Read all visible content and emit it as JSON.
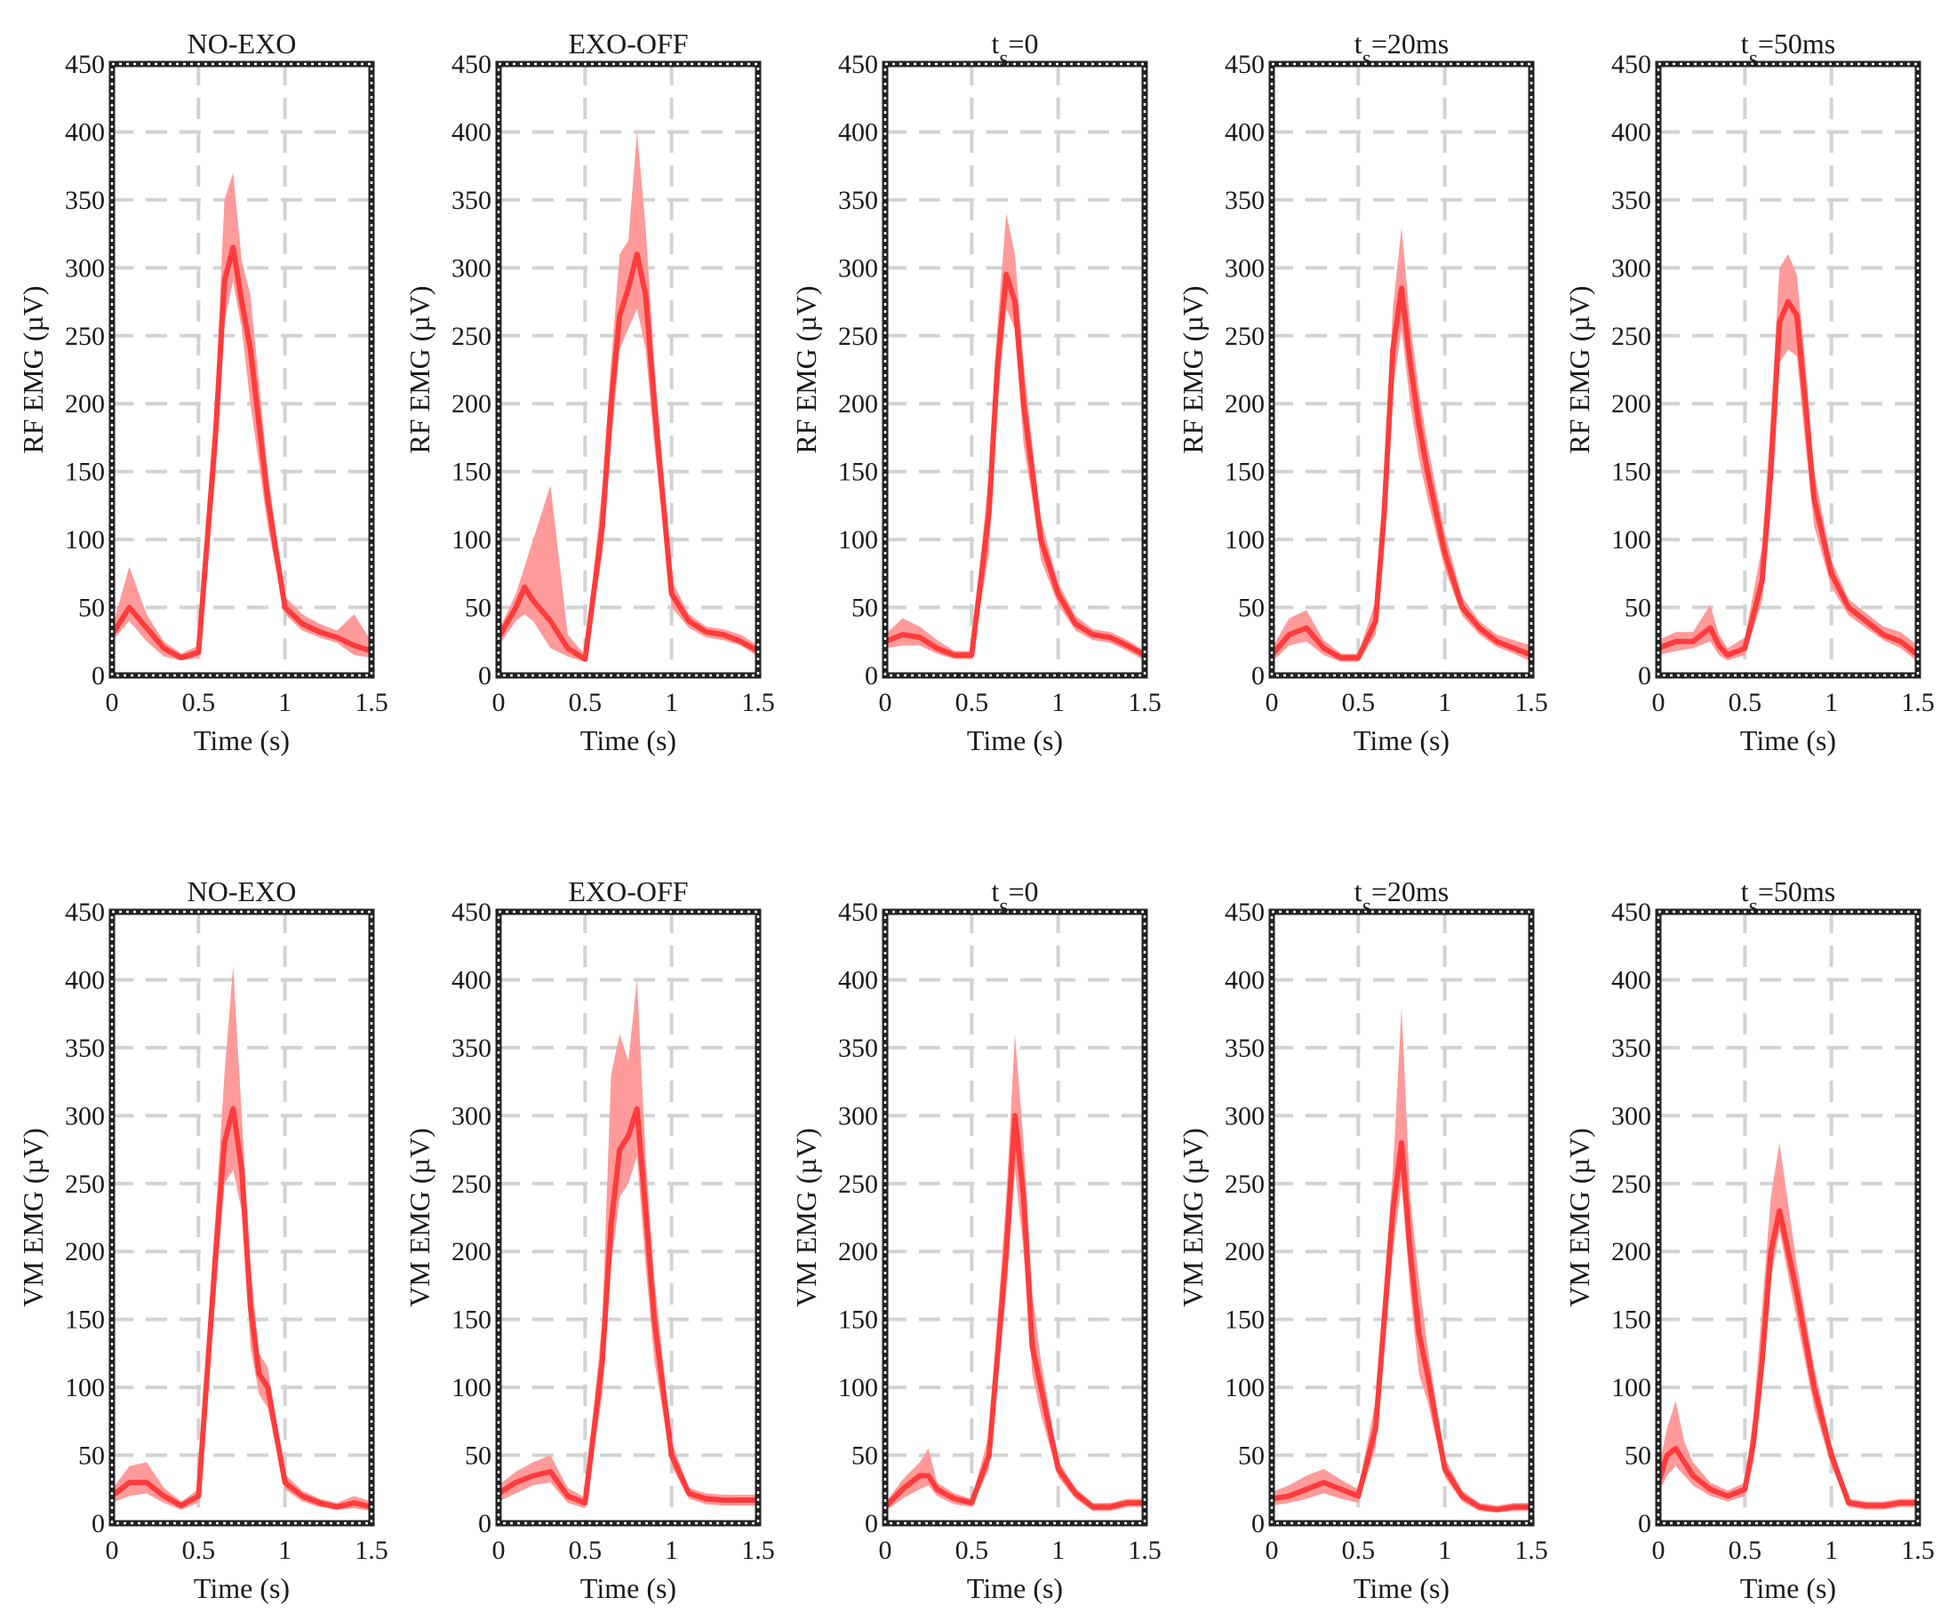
{
  "colors": {
    "line": "#ff3b3b",
    "band": "#ff9a9a",
    "frame": "#222222",
    "grid": "#d2d2d2"
  },
  "chart_data": [
    {
      "type": "line",
      "title": "NO-EXO",
      "title_subscript": "",
      "xlabel": "Time (s)",
      "ylabel": "RF EMG (µV)",
      "xlim": [
        0,
        1.5
      ],
      "ylim": [
        0,
        450
      ],
      "xticks": [
        "0",
        "0.5",
        "1",
        "1.5"
      ],
      "yticks": [
        "0",
        "50",
        "100",
        "150",
        "200",
        "250",
        "300",
        "350",
        "400",
        "450"
      ],
      "grid": true,
      "x": [
        0,
        0.1,
        0.2,
        0.3,
        0.4,
        0.5,
        0.6,
        0.65,
        0.7,
        0.75,
        0.8,
        0.9,
        1.0,
        1.1,
        1.2,
        1.3,
        1.4,
        1.5
      ],
      "series": [
        {
          "mean": [
            30,
            50,
            35,
            20,
            13,
            17,
            180,
            290,
            315,
            275,
            240,
            130,
            50,
            38,
            32,
            28,
            22,
            18
          ],
          "lower": [
            25,
            40,
            25,
            14,
            11,
            13,
            150,
            260,
            290,
            255,
            200,
            110,
            45,
            33,
            28,
            24,
            15,
            13
          ],
          "upper": [
            35,
            80,
            45,
            25,
            16,
            22,
            210,
            350,
            370,
            305,
            280,
            150,
            58,
            45,
            38,
            33,
            45,
            25
          ]
        }
      ]
    },
    {
      "type": "line",
      "title": "EXO-OFF",
      "title_subscript": "",
      "xlabel": "Time (s)",
      "ylabel": "RF EMG (µV)",
      "xlim": [
        0,
        1.5
      ],
      "ylim": [
        0,
        450
      ],
      "xticks": [
        "0",
        "0.5",
        "1",
        "1.5"
      ],
      "yticks": [
        "0",
        "50",
        "100",
        "150",
        "200",
        "250",
        "300",
        "350",
        "400",
        "450"
      ],
      "grid": true,
      "x": [
        0,
        0.1,
        0.15,
        0.2,
        0.3,
        0.4,
        0.5,
        0.6,
        0.65,
        0.7,
        0.75,
        0.8,
        0.85,
        0.9,
        1.0,
        1.1,
        1.2,
        1.3,
        1.4,
        1.5
      ],
      "series": [
        {
          "mean": [
            28,
            50,
            65,
            55,
            40,
            20,
            12,
            110,
            200,
            265,
            285,
            310,
            280,
            200,
            60,
            40,
            32,
            30,
            25,
            18
          ],
          "lower": [
            22,
            40,
            45,
            40,
            20,
            14,
            10,
            90,
            170,
            240,
            255,
            270,
            240,
            170,
            50,
            35,
            28,
            26,
            22,
            14
          ],
          "upper": [
            33,
            60,
            80,
            100,
            140,
            30,
            15,
            140,
            230,
            310,
            320,
            400,
            330,
            230,
            70,
            45,
            36,
            34,
            30,
            22
          ]
        }
      ]
    },
    {
      "type": "line",
      "title": "t",
      "title_subscript": "s",
      "title_suffix": "=0",
      "xlabel": "Time (s)",
      "ylabel": "RF EMG (µV)",
      "xlim": [
        0,
        1.5
      ],
      "ylim": [
        0,
        450
      ],
      "xticks": [
        "0",
        "0.5",
        "1",
        "1.5"
      ],
      "yticks": [
        "0",
        "50",
        "100",
        "150",
        "200",
        "250",
        "300",
        "350",
        "400",
        "450"
      ],
      "grid": true,
      "x": [
        0,
        0.1,
        0.2,
        0.3,
        0.4,
        0.5,
        0.6,
        0.65,
        0.7,
        0.75,
        0.8,
        0.85,
        0.9,
        1.0,
        1.1,
        1.2,
        1.3,
        1.4,
        1.5
      ],
      "series": [
        {
          "mean": [
            25,
            30,
            28,
            20,
            15,
            15,
            120,
            230,
            295,
            275,
            200,
            150,
            100,
            60,
            38,
            30,
            28,
            22,
            15
          ],
          "lower": [
            20,
            22,
            22,
            16,
            12,
            12,
            90,
            200,
            270,
            255,
            170,
            130,
            85,
            52,
            33,
            26,
            24,
            18,
            11
          ],
          "upper": [
            30,
            42,
            36,
            26,
            18,
            18,
            150,
            260,
            340,
            310,
            230,
            170,
            115,
            68,
            44,
            34,
            32,
            26,
            18
          ]
        }
      ]
    },
    {
      "type": "line",
      "title": "t",
      "title_subscript": "s",
      "title_suffix": "=20ms",
      "xlabel": "Time (s)",
      "ylabel": "RF EMG (µV)",
      "xlim": [
        0,
        1.5
      ],
      "ylim": [
        0,
        450
      ],
      "xticks": [
        "0",
        "0.5",
        "1",
        "1.5"
      ],
      "yticks": [
        "0",
        "50",
        "100",
        "150",
        "200",
        "250",
        "300",
        "350",
        "400",
        "450"
      ],
      "grid": true,
      "x": [
        0,
        0.1,
        0.2,
        0.3,
        0.4,
        0.5,
        0.6,
        0.65,
        0.7,
        0.75,
        0.8,
        0.85,
        0.9,
        1.0,
        1.1,
        1.2,
        1.3,
        1.4,
        1.5
      ],
      "series": [
        {
          "mean": [
            15,
            30,
            35,
            20,
            13,
            13,
            40,
            120,
            240,
            285,
            230,
            185,
            150,
            90,
            50,
            35,
            25,
            20,
            15
          ],
          "lower": [
            10,
            22,
            25,
            15,
            10,
            10,
            30,
            95,
            210,
            255,
            200,
            160,
            130,
            78,
            44,
            30,
            21,
            16,
            10
          ],
          "upper": [
            20,
            42,
            48,
            26,
            16,
            16,
            55,
            150,
            270,
            330,
            260,
            210,
            170,
            105,
            58,
            40,
            30,
            26,
            22
          ]
        }
      ]
    },
    {
      "type": "line",
      "title": "t",
      "title_subscript": "s",
      "title_suffix": "=50ms",
      "xlabel": "Time (s)",
      "ylabel": "RF EMG (µV)",
      "xlim": [
        0,
        1.5
      ],
      "ylim": [
        0,
        450
      ],
      "xticks": [
        "0",
        "0.5",
        "1",
        "1.5"
      ],
      "yticks": [
        "0",
        "50",
        "100",
        "150",
        "200",
        "250",
        "300",
        "350",
        "400",
        "450"
      ],
      "grid": true,
      "x": [
        0,
        0.1,
        0.2,
        0.3,
        0.35,
        0.4,
        0.5,
        0.6,
        0.65,
        0.7,
        0.75,
        0.8,
        0.85,
        0.9,
        1.0,
        1.1,
        1.2,
        1.3,
        1.4,
        1.5
      ],
      "series": [
        {
          "mean": [
            20,
            25,
            25,
            35,
            22,
            15,
            20,
            70,
            150,
            260,
            275,
            265,
            200,
            130,
            75,
            50,
            40,
            30,
            25,
            15
          ],
          "lower": [
            15,
            18,
            20,
            25,
            15,
            11,
            15,
            55,
            120,
            230,
            240,
            235,
            170,
            110,
            65,
            44,
            35,
            26,
            20,
            10
          ],
          "upper": [
            26,
            32,
            32,
            52,
            30,
            20,
            28,
            95,
            190,
            300,
            310,
            295,
            230,
            150,
            85,
            56,
            46,
            36,
            32,
            22
          ]
        }
      ]
    },
    {
      "type": "line",
      "title": "NO-EXO",
      "title_subscript": "",
      "xlabel": "Time (s)",
      "ylabel": "VM EMG (µV)",
      "xlim": [
        0,
        1.5
      ],
      "ylim": [
        0,
        450
      ],
      "xticks": [
        "0",
        "0.5",
        "1",
        "1.5"
      ],
      "yticks": [
        "0",
        "50",
        "100",
        "150",
        "200",
        "250",
        "300",
        "350",
        "400",
        "450"
      ],
      "grid": true,
      "x": [
        0,
        0.1,
        0.2,
        0.3,
        0.4,
        0.5,
        0.6,
        0.65,
        0.7,
        0.75,
        0.8,
        0.85,
        0.9,
        1.0,
        1.1,
        1.2,
        1.3,
        1.4,
        1.5
      ],
      "series": [
        {
          "mean": [
            20,
            30,
            30,
            20,
            13,
            20,
            200,
            280,
            305,
            260,
            160,
            110,
            100,
            30,
            20,
            15,
            12,
            15,
            12
          ],
          "lower": [
            15,
            20,
            22,
            15,
            10,
            15,
            170,
            250,
            260,
            230,
            130,
            95,
            85,
            25,
            16,
            12,
            10,
            11,
            9
          ],
          "upper": [
            25,
            42,
            45,
            26,
            16,
            25,
            230,
            330,
            410,
            300,
            190,
            125,
            115,
            36,
            24,
            18,
            15,
            20,
            16
          ]
        }
      ]
    },
    {
      "type": "line",
      "title": "EXO-OFF",
      "title_subscript": "",
      "xlabel": "Time (s)",
      "ylabel": "VM EMG (µV)",
      "xlim": [
        0,
        1.5
      ],
      "ylim": [
        0,
        450
      ],
      "xticks": [
        "0",
        "0.5",
        "1",
        "1.5"
      ],
      "yticks": [
        "0",
        "50",
        "100",
        "150",
        "200",
        "250",
        "300",
        "350",
        "400",
        "450"
      ],
      "grid": true,
      "x": [
        0,
        0.1,
        0.2,
        0.3,
        0.4,
        0.5,
        0.6,
        0.65,
        0.7,
        0.75,
        0.8,
        0.85,
        0.9,
        1.0,
        1.1,
        1.2,
        1.3,
        1.4,
        1.5
      ],
      "series": [
        {
          "mean": [
            22,
            30,
            35,
            38,
            20,
            15,
            120,
            220,
            275,
            285,
            305,
            230,
            150,
            50,
            22,
            18,
            17,
            17,
            17
          ],
          "lower": [
            16,
            22,
            28,
            30,
            15,
            11,
            95,
            190,
            240,
            250,
            270,
            190,
            120,
            42,
            18,
            14,
            13,
            13,
            13
          ],
          "upper": [
            28,
            38,
            45,
            50,
            26,
            19,
            150,
            330,
            360,
            340,
            400,
            270,
            180,
            60,
            26,
            22,
            21,
            21,
            21
          ]
        }
      ]
    },
    {
      "type": "line",
      "title": "t",
      "title_subscript": "s",
      "title_suffix": "=0",
      "xlabel": "Time (s)",
      "ylabel": "VM EMG (µV)",
      "xlim": [
        0,
        1.5
      ],
      "ylim": [
        0,
        450
      ],
      "xticks": [
        "0",
        "0.5",
        "1",
        "1.5"
      ],
      "yticks": [
        "0",
        "50",
        "100",
        "150",
        "200",
        "250",
        "300",
        "350",
        "400",
        "450"
      ],
      "grid": true,
      "x": [
        0,
        0.1,
        0.2,
        0.25,
        0.3,
        0.4,
        0.5,
        0.6,
        0.7,
        0.75,
        0.8,
        0.85,
        0.9,
        1.0,
        1.1,
        1.2,
        1.3,
        1.4,
        1.5
      ],
      "series": [
        {
          "mean": [
            12,
            25,
            35,
            35,
            25,
            18,
            15,
            50,
            200,
            300,
            240,
            130,
            100,
            40,
            22,
            12,
            12,
            15,
            15
          ],
          "lower": [
            9,
            18,
            25,
            28,
            20,
            14,
            12,
            40,
            170,
            260,
            200,
            110,
            80,
            34,
            18,
            9,
            9,
            12,
            12
          ],
          "upper": [
            15,
            32,
            45,
            55,
            30,
            22,
            18,
            65,
            240,
            360,
            280,
            170,
            120,
            46,
            26,
            15,
            15,
            18,
            18
          ]
        }
      ]
    },
    {
      "type": "line",
      "title": "t",
      "title_subscript": "s",
      "title_suffix": "=20ms",
      "xlabel": "Time (s)",
      "ylabel": "VM EMG (µV)",
      "xlim": [
        0,
        1.5
      ],
      "ylim": [
        0,
        450
      ],
      "xticks": [
        "0",
        "0.5",
        "1",
        "1.5"
      ],
      "yticks": [
        "0",
        "50",
        "100",
        "150",
        "200",
        "250",
        "300",
        "350",
        "400",
        "450"
      ],
      "grid": true,
      "x": [
        0,
        0.1,
        0.2,
        0.3,
        0.4,
        0.5,
        0.6,
        0.7,
        0.75,
        0.8,
        0.85,
        0.9,
        1.0,
        1.1,
        1.2,
        1.3,
        1.4,
        1.5
      ],
      "series": [
        {
          "mean": [
            18,
            20,
            25,
            30,
            25,
            20,
            70,
            230,
            280,
            200,
            140,
            110,
            40,
            20,
            12,
            10,
            12,
            12
          ],
          "lower": [
            13,
            15,
            18,
            22,
            18,
            15,
            55,
            200,
            250,
            170,
            110,
            90,
            34,
            16,
            9,
            8,
            9,
            9
          ],
          "upper": [
            23,
            28,
            35,
            40,
            32,
            25,
            90,
            260,
            380,
            240,
            180,
            130,
            48,
            24,
            15,
            13,
            15,
            15
          ]
        }
      ]
    },
    {
      "type": "line",
      "title": "t",
      "title_subscript": "s",
      "title_suffix": "=50ms",
      "xlabel": "Time (s)",
      "ylabel": "VM EMG (µV)",
      "xlim": [
        0,
        1.5
      ],
      "ylim": [
        0,
        450
      ],
      "xticks": [
        "0",
        "0.5",
        "1",
        "1.5"
      ],
      "yticks": [
        "0",
        "50",
        "100",
        "150",
        "200",
        "250",
        "300",
        "350",
        "400",
        "450"
      ],
      "grid": true,
      "x": [
        0,
        0.05,
        0.1,
        0.15,
        0.2,
        0.3,
        0.4,
        0.5,
        0.55,
        0.6,
        0.65,
        0.7,
        0.8,
        0.9,
        1.0,
        1.1,
        1.2,
        1.3,
        1.4,
        1.5
      ],
      "series": [
        {
          "mean": [
            30,
            50,
            55,
            45,
            35,
            25,
            20,
            25,
            60,
            120,
            200,
            230,
            170,
            100,
            50,
            15,
            13,
            13,
            15,
            15
          ],
          "lower": [
            22,
            35,
            42,
            35,
            28,
            20,
            16,
            20,
            45,
            100,
            180,
            215,
            150,
            85,
            42,
            12,
            10,
            10,
            12,
            12
          ],
          "upper": [
            40,
            70,
            90,
            60,
            45,
            30,
            24,
            30,
            80,
            160,
            240,
            280,
            190,
            115,
            58,
            18,
            16,
            16,
            18,
            18
          ]
        }
      ]
    }
  ]
}
